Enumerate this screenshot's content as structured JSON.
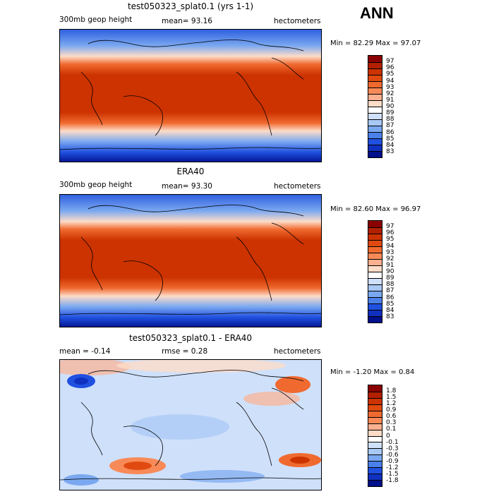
{
  "season": "ANN",
  "panels": [
    {
      "id": "model",
      "title": "test050323_splat0.1 (yrs 1-1)",
      "left_label": "300mb geop height",
      "mid_label": "mean=  93.16",
      "right_label": "hectometers",
      "minmax": "Min =  82.29 Max =  97.07",
      "colorbar_labels": [
        "97",
        "96",
        "95",
        "94",
        "93",
        "92",
        "91",
        "90",
        "89",
        "88",
        "87",
        "86",
        "85",
        "84",
        "83"
      ],
      "colorbar_colors": [
        "#8b0000",
        "#b22000",
        "#cc3300",
        "#e04a10",
        "#f06a30",
        "#f88a58",
        "#fcb090",
        "#fddcc8",
        "#ffffff",
        "#cfe0fa",
        "#a8c8f5",
        "#7aa8f0",
        "#4a80ea",
        "#2050e0",
        "#1030c0",
        "#00108a"
      ]
    },
    {
      "id": "obs",
      "title": "ERA40",
      "left_label": "300mb geop height",
      "mid_label": "mean=  93.30",
      "right_label": "hectometers",
      "minmax": "Min =  82.60 Max =  96.97",
      "colorbar_labels": [
        "97",
        "96",
        "95",
        "94",
        "93",
        "92",
        "91",
        "90",
        "89",
        "88",
        "87",
        "86",
        "85",
        "84",
        "83"
      ],
      "colorbar_colors": [
        "#8b0000",
        "#b22000",
        "#cc3300",
        "#e04a10",
        "#f06a30",
        "#f88a58",
        "#fcb090",
        "#fddcc8",
        "#ffffff",
        "#cfe0fa",
        "#a8c8f5",
        "#7aa8f0",
        "#4a80ea",
        "#2050e0",
        "#1030c0",
        "#00108a"
      ]
    },
    {
      "id": "diff",
      "title": "test050323_splat0.1 - ERA40",
      "left_label": "mean =  -0.14",
      "mid_label": "rmse =   0.28",
      "right_label": "hectometers",
      "minmax": "Min =  -1.20 Max =   0.84",
      "colorbar_labels": [
        "1.8",
        "1.5",
        "1.2",
        "0.9",
        "0.6",
        "0.3",
        "0.1",
        "0",
        "-0.1",
        "-0.3",
        "-0.6",
        "-0.9",
        "-1.2",
        "-1.5",
        "-1.8"
      ],
      "colorbar_colors": [
        "#8b0000",
        "#b22000",
        "#cc3300",
        "#e04a10",
        "#f06a30",
        "#f88a58",
        "#fcb090",
        "#fddcc8",
        "#ffffff",
        "#cfe0fa",
        "#a8c8f5",
        "#7aa8f0",
        "#4a80ea",
        "#2050e0",
        "#1030c0",
        "#00108a"
      ]
    }
  ]
}
